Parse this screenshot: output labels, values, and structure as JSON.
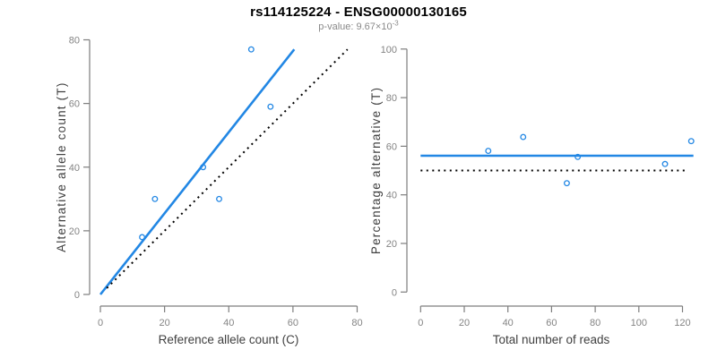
{
  "header": {
    "title": "rs114125224 - ENSG00000130165",
    "subtitle_main": "p-value: 9.67×10",
    "subtitle_exponent": "-3"
  },
  "colors": {
    "accent_blue": "#2287E4",
    "dotted_black": "#000000",
    "axis_gray": "#7d7d7d",
    "tick_label_gray": "#848484",
    "axis_title_gray": "#3f3f3f",
    "subtitle_gray": "#8a8a8a",
    "background": "#ffffff"
  },
  "chart_data": [
    {
      "type": "scatter",
      "panel": "left",
      "xlabel": "Reference allele count (C)",
      "ylabel": "Alternative allele count (T)",
      "xlim": [
        0,
        80
      ],
      "ylim": [
        0,
        80
      ],
      "xticks": [
        0,
        20,
        40,
        60,
        80
      ],
      "yticks": [
        0,
        20,
        40,
        60,
        80
      ],
      "grid": false,
      "point_color": "#2287E4",
      "points": [
        [
          13,
          18
        ],
        [
          17,
          30
        ],
        [
          32,
          40
        ],
        [
          37,
          30
        ],
        [
          47,
          77
        ],
        [
          53,
          59
        ]
      ],
      "lines": [
        {
          "name": "regression-line",
          "style": "solid",
          "color": "#2287E4",
          "width": 2.6,
          "x1": 0,
          "y1": 0,
          "x2": 60.4,
          "y2": 77
        },
        {
          "name": "identity-line",
          "style": "dotted",
          "color": "#000000",
          "width": 2,
          "x1": 2,
          "y1": 2,
          "x2": 77,
          "y2": 77
        }
      ]
    },
    {
      "type": "scatter",
      "panel": "right",
      "xlabel": "Total number of reads",
      "ylabel": "Percentage alternative (T)",
      "xlim": [
        0,
        125
      ],
      "ylim": [
        0,
        100
      ],
      "xticks": [
        0,
        20,
        40,
        60,
        80,
        100,
        120
      ],
      "yticks": [
        0,
        20,
        40,
        60,
        80,
        100
      ],
      "grid": false,
      "point_color": "#2287E4",
      "points": [
        [
          31,
          58.1
        ],
        [
          47,
          63.8
        ],
        [
          67,
          44.8
        ],
        [
          72,
          55.6
        ],
        [
          112,
          52.7
        ],
        [
          124,
          62.1
        ]
      ],
      "lines": [
        {
          "name": "mean-percentage-line",
          "style": "solid",
          "color": "#2287E4",
          "width": 2.6,
          "x1": 0,
          "y1": 56.1,
          "x2": 125,
          "y2": 56.1
        },
        {
          "name": "expected-50-percent-line",
          "style": "dotted",
          "color": "#000000",
          "width": 2,
          "x1": 0,
          "y1": 50,
          "x2": 122,
          "y2": 50
        }
      ]
    }
  ]
}
